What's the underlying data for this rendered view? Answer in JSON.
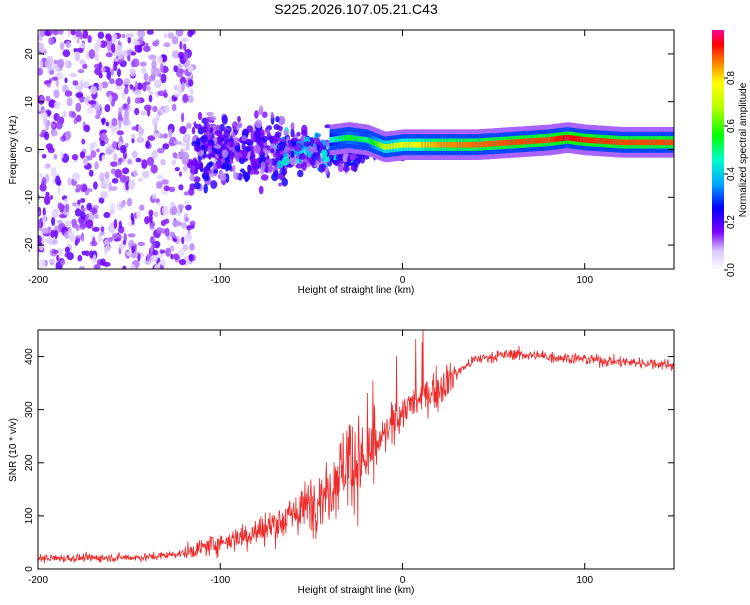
{
  "title": "S225.2026.107.05.21.C43",
  "chart_data": [
    {
      "type": "heatmap",
      "xlabel": "Height of straight line (km)",
      "ylabel": "Frequency (Hz)",
      "xlim": [
        -200,
        149
      ],
      "ylim": [
        -25,
        25
      ],
      "xticks": [
        -200,
        -100,
        0,
        100
      ],
      "yticks": [
        -20,
        -10,
        0,
        10,
        20
      ],
      "colorbar": {
        "label": "Normalized spectral amplitude",
        "range": [
          0.0,
          1.0
        ],
        "ticks": [
          "0.0",
          "0.2",
          "0.4",
          "0.6",
          "0.8"
        ],
        "tick_values": [
          0.0,
          0.2,
          0.4,
          0.6,
          0.8
        ]
      },
      "ridge": {
        "x": [
          -40,
          -30,
          -20,
          -10,
          0,
          10,
          20,
          40,
          60,
          80,
          90,
          100,
          120,
          149
        ],
        "y": [
          2,
          2.5,
          2,
          0.5,
          1,
          1,
          1,
          1,
          1.5,
          2,
          2.5,
          2,
          1.5,
          1.5
        ],
        "amplitude": [
          0.45,
          0.55,
          0.5,
          0.7,
          0.75,
          0.8,
          0.85,
          0.88,
          0.9,
          0.9,
          0.95,
          0.92,
          0.9,
          0.9
        ]
      }
    },
    {
      "type": "line",
      "xlabel": "Height of straight line (km)",
      "ylabel": "SNR (10 * v/v)",
      "xlim": [
        -200,
        149
      ],
      "ylim": [
        0,
        450
      ],
      "xticks": [
        -200,
        -100,
        0,
        100
      ],
      "yticks": [
        0,
        100,
        200,
        300,
        400
      ],
      "color": "#ee2a2a",
      "trend": {
        "x": [
          -200,
          -140,
          -120,
          -100,
          -80,
          -60,
          -40,
          -30,
          -20,
          -15,
          -10,
          0,
          10,
          20,
          30,
          40,
          60,
          80,
          100,
          120,
          149
        ],
        "y": [
          20,
          22,
          30,
          50,
          70,
          100,
          150,
          210,
          200,
          230,
          250,
          300,
          320,
          340,
          370,
          395,
          405,
          400,
          395,
          390,
          385
        ]
      }
    }
  ],
  "colors": {
    "line": "#ee2a2a",
    "axis": "#000000",
    "background": "#ffffff"
  }
}
